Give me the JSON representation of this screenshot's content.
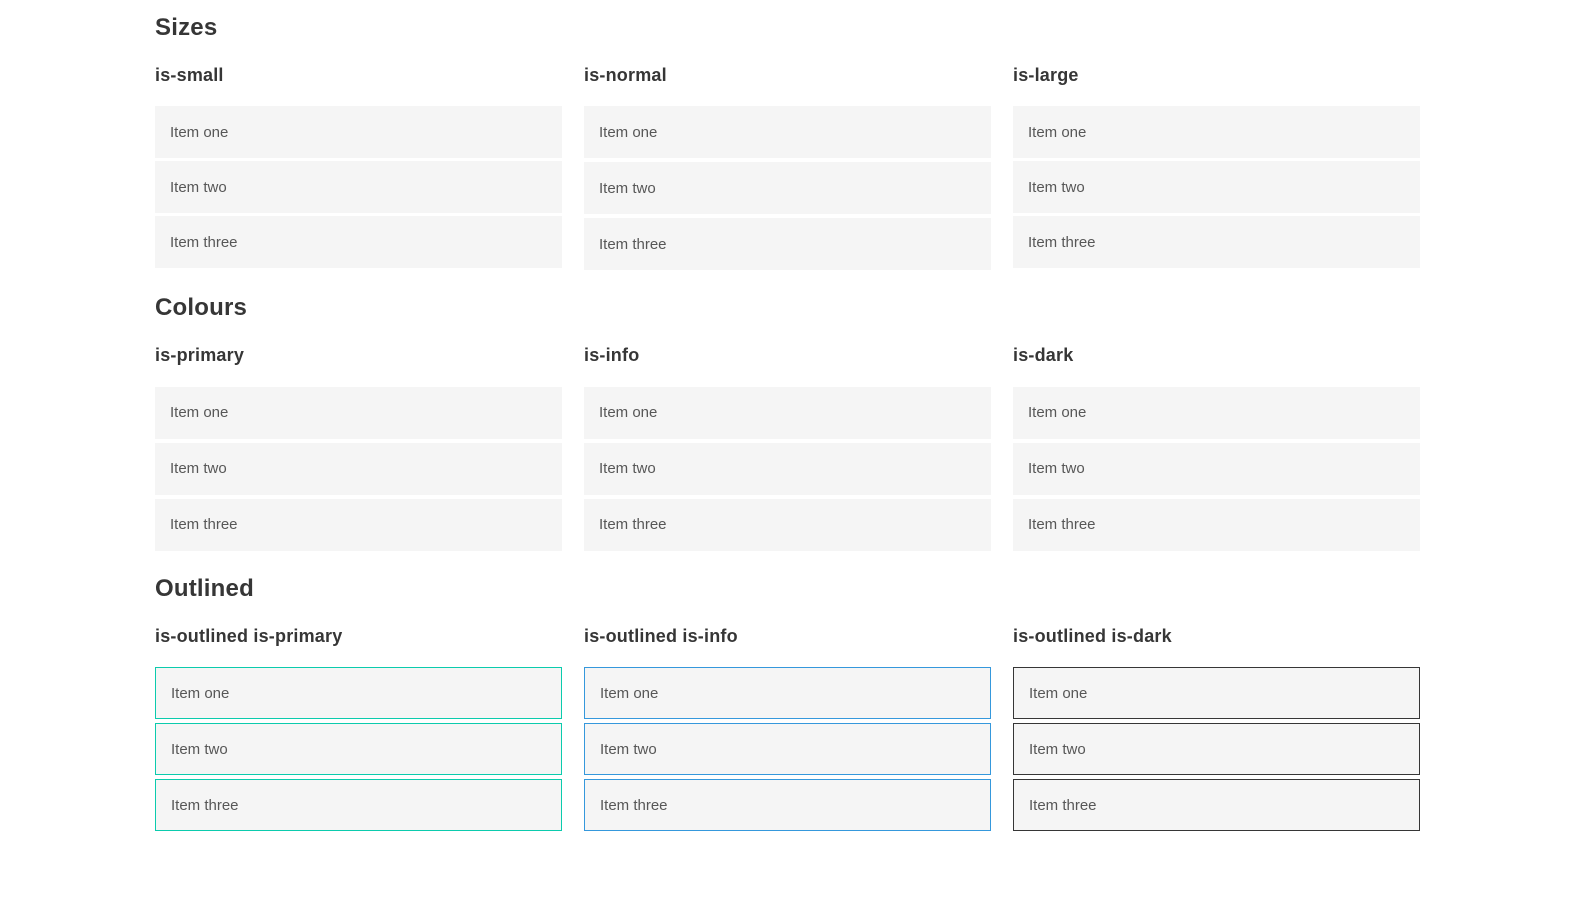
{
  "colors": {
    "primary": "#0bcbad",
    "info": "#3598dc",
    "dark": "#363636",
    "item_bg": "#f5f5f5",
    "item_text": "#575757",
    "heading": "#363636",
    "outlined_dark_text": "#4a4a4a"
  },
  "sections": [
    {
      "title": "Sizes",
      "groups": [
        {
          "label": "is-small",
          "items": [
            "Item one",
            "Item two",
            "Item three"
          ]
        },
        {
          "label": "is-normal",
          "items": [
            "Item one",
            "Item two",
            "Item three"
          ]
        },
        {
          "label": "is-large",
          "items": [
            "Item one",
            "Item two",
            "Item three"
          ]
        }
      ]
    },
    {
      "title": "Colours",
      "groups": [
        {
          "label": "is-primary",
          "items": [
            "Item one",
            "Item two",
            "Item three"
          ]
        },
        {
          "label": "is-info",
          "items": [
            "Item one",
            "Item two",
            "Item three"
          ]
        },
        {
          "label": "is-dark",
          "items": [
            "Item one",
            "Item two",
            "Item three"
          ]
        }
      ]
    },
    {
      "title": "Outlined",
      "groups": [
        {
          "label": "is-outlined is-primary",
          "items": [
            "Item one",
            "Item two",
            "Item three"
          ]
        },
        {
          "label": "is-outlined is-info",
          "items": [
            "Item one",
            "Item two",
            "Item three"
          ]
        },
        {
          "label": "is-outlined is-dark",
          "items": [
            "Item one",
            "Item two",
            "Item three"
          ]
        }
      ]
    }
  ]
}
